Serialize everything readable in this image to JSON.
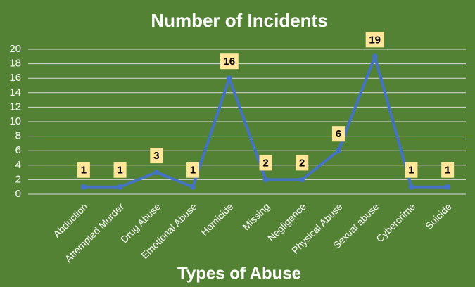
{
  "chart_data": {
    "type": "line",
    "title": "Number of Incidents",
    "x_label": "Types of Abuse",
    "categories": [
      "Abduction",
      "Attempted Murder",
      "Drug Abuse",
      "Emotional Abuse",
      "Homicide",
      "Missing",
      "Negligence",
      "Physical Abuse",
      "Sexual abuse",
      "Cybercrime",
      "Suicide"
    ],
    "values": [
      1,
      1,
      3,
      1,
      16,
      2,
      2,
      6,
      19,
      1,
      1
    ],
    "color": "#4472c4",
    "label_color": "#ffe699",
    "ylim": [
      0,
      20
    ],
    "yticks": [
      0,
      2,
      4,
      6,
      8,
      10,
      12,
      14,
      16,
      18,
      20
    ],
    "grid": true
  }
}
